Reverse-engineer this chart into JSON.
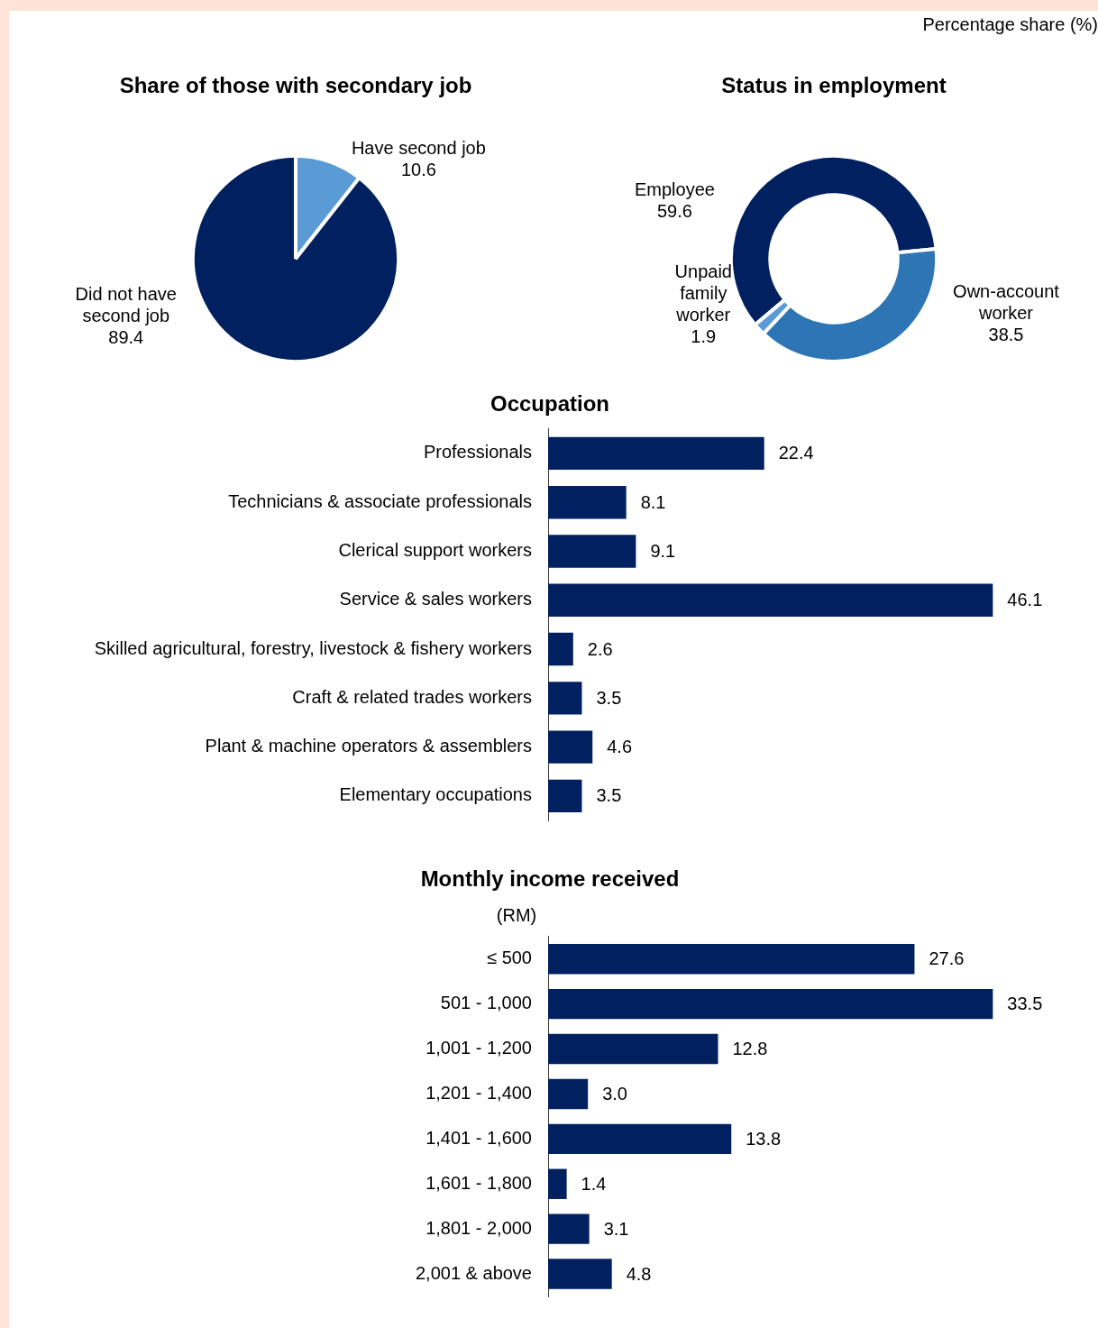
{
  "chart_data": [
    {
      "type": "pie",
      "title": "Share of those with secondary job",
      "categories": [
        "Have second job",
        "Did not have second job"
      ],
      "values": [
        10.6,
        89.4
      ],
      "colors": [
        "#5b9bd5",
        "#002060"
      ],
      "data_labels": true,
      "legend": false,
      "annotations": [
        "Percentage share (%)"
      ]
    },
    {
      "type": "donut",
      "title": "Status in employment",
      "categories": [
        "Employee",
        "Own-account worker",
        "Unpaid family worker"
      ],
      "values": [
        59.6,
        38.5,
        1.9
      ],
      "colors": [
        "#002060",
        "#2e75b6",
        "#5b9bd5"
      ],
      "data_labels": true,
      "legend": false
    },
    {
      "type": "bar",
      "orientation": "horizontal",
      "title": "Occupation",
      "categories": [
        "Professionals",
        "Technicians & associate professionals",
        "Clerical support workers",
        "Service & sales workers",
        "Skilled agricultural, forestry, livestock & fishery workers",
        "Craft & related trades workers",
        "Plant & machine operators & assemblers",
        "Elementary occupations"
      ],
      "values": [
        22.4,
        8.1,
        9.1,
        46.1,
        2.6,
        3.5,
        4.6,
        3.5
      ],
      "color": "#002060",
      "data_labels": true,
      "tick_labels": "y",
      "grid": false,
      "legend": false
    },
    {
      "type": "bar",
      "orientation": "horizontal",
      "title": "Monthly income received",
      "ylabel": "(RM)",
      "categories": [
        "≤ 500",
        "501 - 1,000",
        "1,001 - 1,200",
        "1,201 - 1,400",
        "1,401 - 1,600",
        "1,601 - 1,800",
        "1,801 - 2,000",
        "2,001 & above"
      ],
      "values": [
        27.6,
        33.5,
        12.8,
        3.0,
        13.8,
        1.4,
        3.1,
        4.8
      ],
      "value_labels": [
        "27.6",
        "33.5",
        "12.8",
        "3.0",
        "13.8",
        "1.4",
        "3.1",
        "4.8"
      ],
      "color": "#002060",
      "tick_labels": "y",
      "grid": false,
      "legend": false
    }
  ]
}
